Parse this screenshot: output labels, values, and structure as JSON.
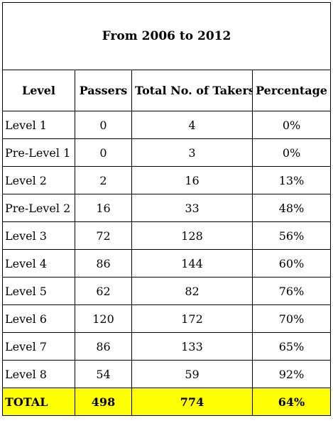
{
  "title": "From 2006 to 2012",
  "columns": [
    "Level",
    "Passers",
    "Total No. of Takers",
    "Percentage"
  ],
  "rows": [
    {
      "level": "Level 1",
      "passers": "0",
      "takers": "4",
      "percentage": "0%"
    },
    {
      "level": "Pre-Level 1",
      "passers": "0",
      "takers": "3",
      "percentage": "0%"
    },
    {
      "level": "Level 2",
      "passers": "2",
      "takers": "16",
      "percentage": "13%"
    },
    {
      "level": "Pre-Level 2",
      "passers": "16",
      "takers": "33",
      "percentage": "48%"
    },
    {
      "level": "Level 3",
      "passers": "72",
      "takers": "128",
      "percentage": "56%"
    },
    {
      "level": "Level 4",
      "passers": "86",
      "takers": "144",
      "percentage": "60%"
    },
    {
      "level": "Level 5",
      "passers": "62",
      "takers": "82",
      "percentage": "76%"
    },
    {
      "level": "Level 6",
      "passers": "120",
      "takers": "172",
      "percentage": "70%"
    },
    {
      "level": "Level 7",
      "passers": "86",
      "takers": "133",
      "percentage": "65%"
    },
    {
      "level": "Level 8",
      "passers": "54",
      "takers": "59",
      "percentage": "92%"
    }
  ],
  "total": {
    "label": "TOTAL",
    "passers": "498",
    "takers": "774",
    "percentage": "64%"
  },
  "colors": {
    "total_highlight": "#ffff00",
    "border": "#000000"
  }
}
